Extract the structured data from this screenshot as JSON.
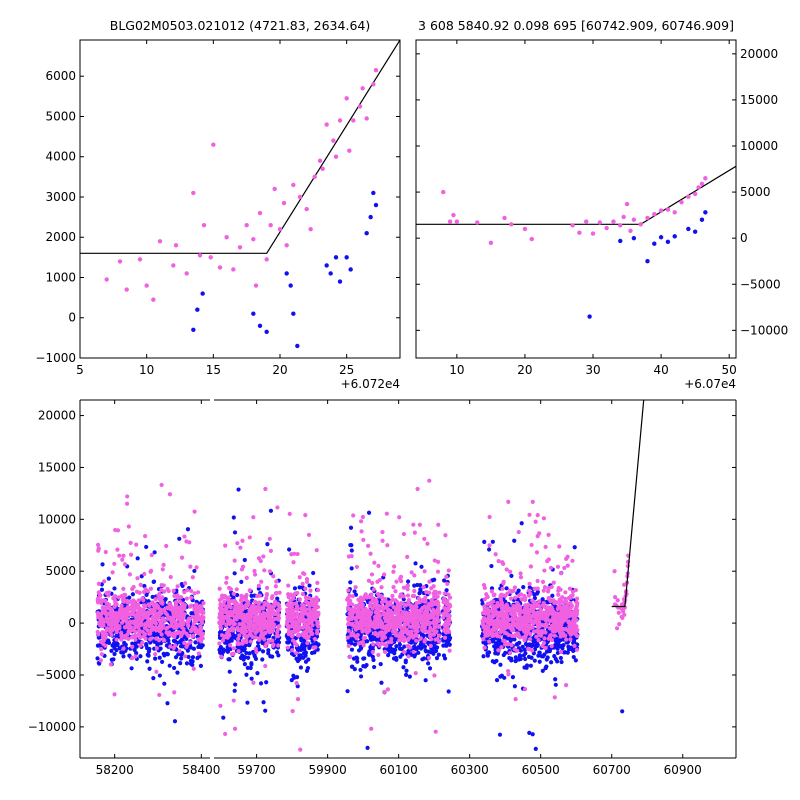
{
  "colors": {
    "pink": "#f060e0",
    "blue": "#1010f0",
    "fit": "#000000"
  },
  "chart_data": [
    {
      "type": "scatter",
      "panel": "top-left",
      "title": "BLG02M0503.021012 (4721.83, 2634.64)",
      "offset_label": "+6.072e4",
      "xlim": [
        5,
        29
      ],
      "ylim": [
        -1000,
        6900
      ],
      "xticks": [
        5,
        10,
        15,
        20,
        25
      ],
      "yticks": [
        -1000,
        0,
        1000,
        2000,
        3000,
        4000,
        5000,
        6000
      ],
      "fit": {
        "x": [
          5,
          19,
          29
        ],
        "y": [
          1600,
          1600,
          6900
        ]
      },
      "series": [
        {
          "name": "pink",
          "x": [
            7,
            8,
            8.5,
            9.5,
            10,
            10.5,
            11,
            12,
            12.2,
            13,
            13.5,
            14,
            14.3,
            14.8,
            15,
            15.5,
            16,
            16.5,
            17,
            17.5,
            18,
            18.2,
            18.5,
            19,
            19.3,
            19.6,
            20,
            20.3,
            20.5,
            21,
            21.5,
            22,
            22.3,
            22.6,
            23,
            23.2,
            23.5,
            24,
            24.2,
            24.5,
            25,
            25.2,
            25.5,
            26,
            26.2,
            26.5,
            27,
            27.2
          ],
          "y": [
            950,
            1400,
            700,
            1450,
            800,
            450,
            1900,
            1300,
            1800,
            1100,
            3100,
            1550,
            2300,
            1500,
            4300,
            1250,
            2000,
            1200,
            1750,
            2300,
            1950,
            800,
            2600,
            1450,
            2300,
            3200,
            2200,
            2850,
            1800,
            3300,
            3000,
            2700,
            2200,
            3500,
            3900,
            3700,
            4800,
            4400,
            4000,
            4900,
            5450,
            4150,
            4900,
            5250,
            5700,
            4950,
            5800,
            6150
          ]
        },
        {
          "name": "blue",
          "x": [
            13.5,
            13.8,
            14.2,
            18,
            18.5,
            19,
            20.5,
            20.8,
            21,
            21.3,
            23.5,
            23.8,
            24.2,
            24.5,
            25,
            25.3,
            26.5,
            26.8,
            27,
            27.2
          ],
          "y": [
            -300,
            200,
            600,
            100,
            -200,
            -350,
            1100,
            800,
            100,
            -700,
            1300,
            1100,
            1500,
            900,
            1500,
            1200,
            2100,
            2500,
            3100,
            2800
          ]
        }
      ]
    },
    {
      "type": "scatter",
      "panel": "top-right",
      "title": "3 608 5840.92 0.098 695 [60742.909, 60746.909]",
      "offset_label": "+6.07e4",
      "xlim": [
        4,
        51
      ],
      "ylim": [
        -13000,
        21500
      ],
      "xticks": [
        10,
        20,
        30,
        40,
        50
      ],
      "yticks": [
        -10000,
        -5000,
        0,
        5000,
        10000,
        15000,
        20000
      ],
      "fit": {
        "x": [
          4,
          37,
          51
        ],
        "y": [
          1500,
          1500,
          7800
        ]
      },
      "series": [
        {
          "name": "pink",
          "x": [
            8,
            9,
            9.5,
            10,
            13,
            15,
            17,
            18,
            20,
            21,
            27,
            28,
            29,
            30,
            31,
            32,
            33,
            34,
            34.5,
            35,
            35.5,
            36,
            37,
            38,
            39,
            40,
            41,
            42,
            43,
            44,
            45,
            45.5,
            46,
            46.5
          ],
          "y": [
            5000,
            1800,
            2500,
            1800,
            1700,
            -500,
            2200,
            1500,
            1000,
            -100,
            1400,
            600,
            1800,
            500,
            1700,
            1100,
            1800,
            1400,
            2300,
            3700,
            800,
            2000,
            1500,
            2200,
            2600,
            3000,
            3100,
            2800,
            3900,
            4500,
            4800,
            5500,
            5900,
            6500
          ]
        },
        {
          "name": "blue",
          "x": [
            29.5,
            34,
            36,
            38,
            39,
            40,
            41,
            42,
            44,
            45,
            46,
            46.5
          ],
          "y": [
            -8500,
            -300,
            0,
            -2500,
            -600,
            100,
            -400,
            200,
            1000,
            700,
            2000,
            2800
          ]
        }
      ]
    },
    {
      "type": "scatter",
      "panel": "bottom",
      "offset_label": "",
      "xlim": [
        58120,
        61050
      ],
      "ylim": [
        -13000,
        21500
      ],
      "xbreak": [
        58420,
        59580
      ],
      "xticks": [
        58200,
        58400,
        59700,
        59900,
        60100,
        60300,
        60500,
        60700,
        60900
      ],
      "yticks": [
        -10000,
        -5000,
        0,
        5000,
        10000,
        15000,
        20000
      ],
      "fit": {
        "x": [
          60700,
          60737,
          60737,
          60790
        ],
        "y": [
          1600,
          1600,
          1600,
          21500
        ]
      },
      "seasons": [
        {
          "start": 58160,
          "end": 58405,
          "fmax": 5
        },
        {
          "start": 59595,
          "end": 59765,
          "fmax": 3
        },
        {
          "start": 59785,
          "end": 59875,
          "fmax": 2
        },
        {
          "start": 59955,
          "end": 60215,
          "fmax": 3
        },
        {
          "start": 60225,
          "end": 60245,
          "fmax": 2
        },
        {
          "start": 60335,
          "end": 60605,
          "fmax": 3
        }
      ]
    }
  ]
}
